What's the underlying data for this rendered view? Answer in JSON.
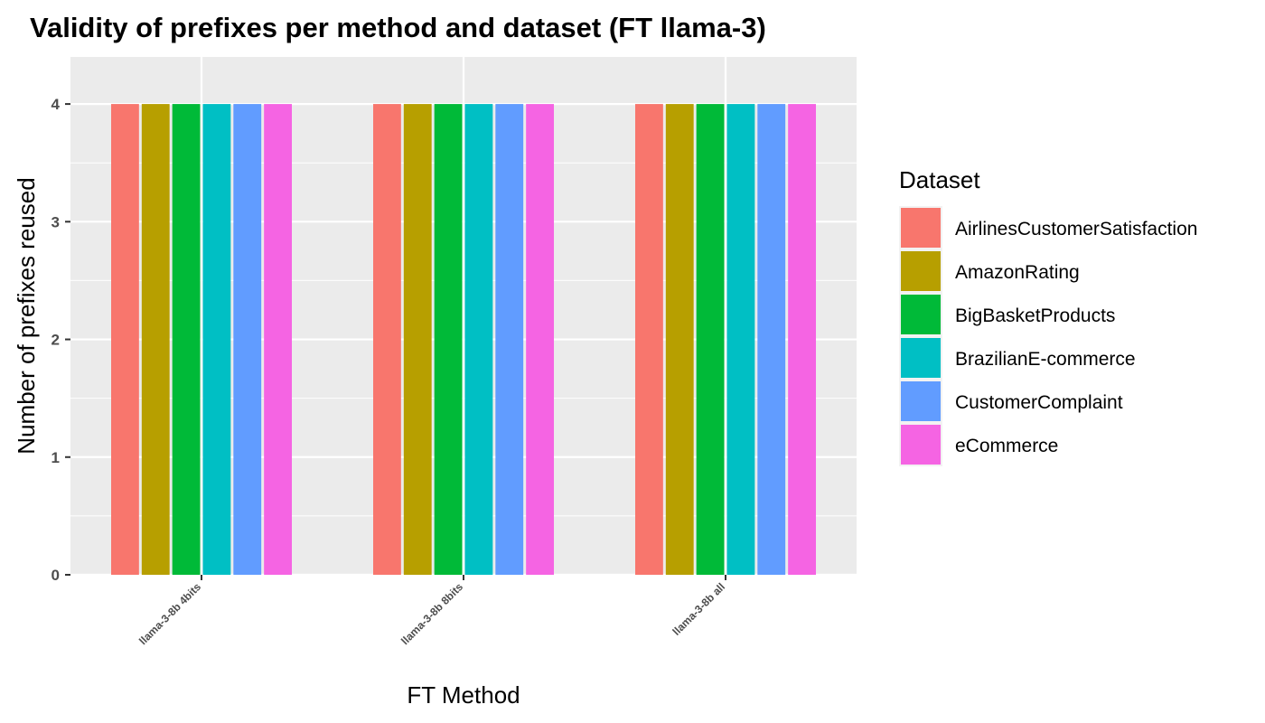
{
  "chart_data": {
    "type": "bar",
    "title": "Validity of prefixes per method and dataset (FT llama-3)",
    "xlabel": "FT Method",
    "ylabel": "Number of prefixes reused",
    "categories": [
      "llama-3-8b 4bits",
      "llama-3-8b 8bits",
      "llama-3-8b all"
    ],
    "ylim": [
      0,
      4.4
    ],
    "yticks": [
      0,
      1,
      2,
      3,
      4
    ],
    "grid": true,
    "legend": {
      "title": "Dataset",
      "position": "right"
    },
    "series": [
      {
        "name": "AirlinesCustomerSatisfaction",
        "color": "#F8766D",
        "values": [
          4,
          4,
          4
        ]
      },
      {
        "name": "AmazonRating",
        "color": "#B79F00",
        "values": [
          4,
          4,
          4
        ]
      },
      {
        "name": "BigBasketProducts",
        "color": "#00BA38",
        "values": [
          4,
          4,
          4
        ]
      },
      {
        "name": "BrazilianE-commerce",
        "color": "#00BFC4",
        "values": [
          4,
          4,
          4
        ]
      },
      {
        "name": "CustomerComplaint",
        "color": "#619CFF",
        "values": [
          4,
          4,
          4
        ]
      },
      {
        "name": "eCommerce",
        "color": "#F564E3",
        "values": [
          4,
          4,
          4
        ]
      }
    ]
  }
}
